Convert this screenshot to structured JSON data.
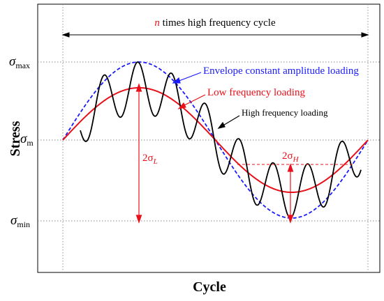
{
  "title": {
    "prefix": "n",
    "text": " times high frequency cycle"
  },
  "axes": {
    "ylabel": "Stress",
    "xlabel": "Cycle",
    "y_ticks": [
      {
        "sym": "σ",
        "sub": "max"
      },
      {
        "sym": "σ",
        "sub": "m"
      },
      {
        "sym": "σ",
        "sub": "min"
      }
    ]
  },
  "labels": {
    "envelope": "Envelope constant amplitude loading",
    "low_freq": "Low frequency loading",
    "high_freq": "High frequency loading",
    "sigma_L": {
      "coef": "2σ",
      "sub": "L"
    },
    "sigma_H": {
      "coef": "2σ",
      "sub": "H"
    }
  },
  "colors": {
    "envelope": "#1a1aff",
    "low_freq": "#e8101a",
    "high_freq": "#000000",
    "grid": "#888888"
  },
  "model": {
    "cycles_high_per_low": 9,
    "low_amplitude_ratio": 0.67
  }
}
